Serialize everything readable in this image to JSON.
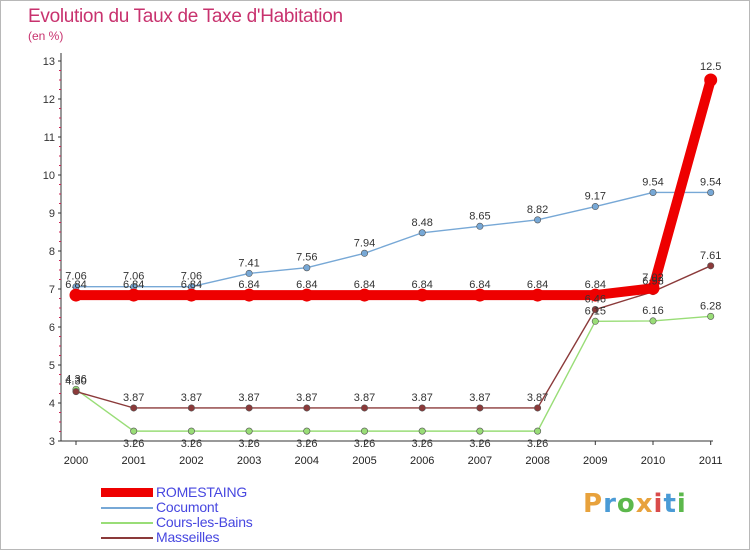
{
  "title": "Evolution du Taux de Taxe d'Habitation",
  "unit_label": "(en %)",
  "brand": {
    "letters": [
      "P",
      "r",
      "o",
      "x",
      "i",
      "t",
      "i"
    ],
    "colors": [
      "#e8a23c",
      "#4a9bd6",
      "#5cb84c",
      "#e8a23c",
      "#d94b4b",
      "#4a9bd6",
      "#5cb84c"
    ]
  },
  "chart_data": {
    "type": "line",
    "title": "Evolution du Taux de Taxe d'Habitation",
    "ylabel": "(en %)",
    "xlabel": "",
    "x": [
      "2000",
      "2001",
      "2002",
      "2003",
      "2004",
      "2005",
      "2006",
      "2007",
      "2008",
      "2009",
      "2010",
      "2011"
    ],
    "ylim": [
      3,
      13
    ],
    "yticks": [
      "3",
      "4",
      "5",
      "6",
      "7",
      "8",
      "9",
      "10",
      "11",
      "12",
      "13"
    ],
    "grid": false,
    "legend_position": "bottom-left",
    "series": [
      {
        "name": "ROMESTAING",
        "color": "#ee0000",
        "values": [
          6.84,
          6.84,
          6.84,
          6.84,
          6.84,
          6.84,
          6.84,
          6.84,
          6.84,
          6.84,
          7.02,
          12.5
        ],
        "labels": [
          "6.84",
          "6.84",
          "6.84",
          "6.84",
          "6.84",
          "6.84",
          "6.84",
          "6.84",
          "6.84",
          "6.84",
          "7.02",
          "12.5"
        ]
      },
      {
        "name": "Cocumont",
        "color": "#77a8d6",
        "values": [
          7.06,
          7.06,
          7.06,
          7.41,
          7.56,
          7.94,
          8.48,
          8.65,
          8.82,
          9.17,
          9.54,
          9.54
        ],
        "labels": [
          "7.06",
          "7.06",
          "7.06",
          "7.41",
          "7.56",
          "7.94",
          "8.48",
          "8.65",
          "8.82",
          "9.17",
          "9.54",
          "9.54"
        ]
      },
      {
        "name": "Cours-les-Bains",
        "color": "#99dd77",
        "values": [
          4.36,
          3.26,
          3.26,
          3.26,
          3.26,
          3.26,
          3.26,
          3.26,
          3.26,
          6.15,
          6.16,
          6.28
        ],
        "labels": [
          "4.36",
          "3.26",
          "3.26",
          "3.26",
          "3.26",
          "3.26",
          "3.26",
          "3.26",
          "3.26",
          "6.15",
          "6.16",
          "6.28"
        ]
      },
      {
        "name": "Masseilles",
        "color": "#8b3a3a",
        "values": [
          4.3,
          3.87,
          3.87,
          3.87,
          3.87,
          3.87,
          3.87,
          3.87,
          3.87,
          6.46,
          6.93,
          7.61
        ],
        "labels": [
          "4.30",
          "3.87",
          "3.87",
          "3.87",
          "3.87",
          "3.87",
          "3.87",
          "3.87",
          "3.87",
          "6.46",
          "6.93",
          "7.61"
        ]
      }
    ]
  }
}
